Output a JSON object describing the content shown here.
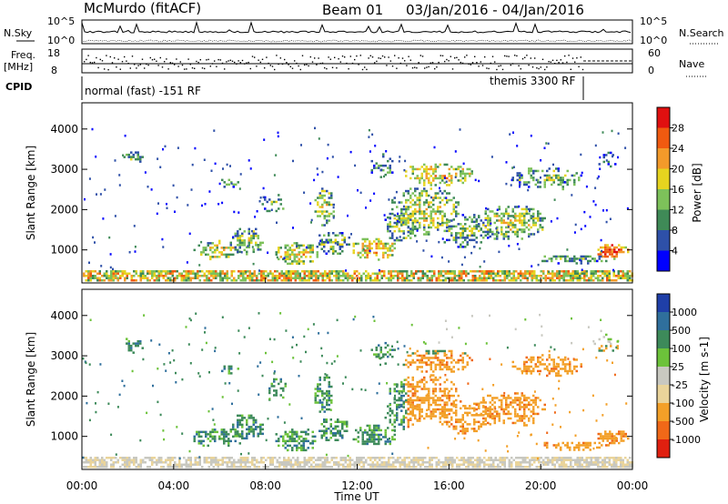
{
  "header": {
    "station": "McMurdo (fitACF)",
    "beam": "Beam 01",
    "date_range": "03/Jan/2016 - 04/Jan/2016"
  },
  "panels": {
    "nsky": {
      "left_label": "N.Sky",
      "right_label": "N.Search",
      "left_ticks": [
        "10^5",
        "10^0"
      ],
      "right_ticks": [
        "10^5",
        "10^0"
      ]
    },
    "freq": {
      "left_label": "Freq.",
      "left_unit": "[MHz]",
      "right_label": "Nave",
      "left_ticks": [
        "18",
        "8"
      ],
      "right_ticks": [
        "60",
        "0"
      ]
    },
    "cpid": {
      "label": "CPID",
      "modes": [
        "normal (fast) -151 RF",
        "themis 3300 RF"
      ]
    }
  },
  "chart_data": [
    {
      "type": "heatmap",
      "name": "Power",
      "ylabel": "Slant Range [km]",
      "y_ticks": [
        1000,
        2000,
        3000,
        4000
      ],
      "ylim": [
        180,
        4650
      ],
      "colorbar_label": "Power [dB]",
      "colorbar_ticks": [
        "4",
        "8",
        "12",
        "16",
        "20",
        "24",
        "28"
      ],
      "colors": [
        "#0000ff",
        "#2e50a8",
        "#3f8a57",
        "#7dc15a",
        "#e6d41f",
        "#f39a2a",
        "#f05a10",
        "#e01010"
      ]
    },
    {
      "type": "heatmap",
      "name": "Velocity",
      "ylabel": "Slant Range [km]",
      "y_ticks": [
        1000,
        2000,
        3000,
        4000
      ],
      "ylim": [
        180,
        4650
      ],
      "colorbar_label": "Velocity [m s-1]",
      "colorbar_ticks": [
        "1000",
        "500",
        "100",
        "25",
        "-25",
        "-100",
        "-500",
        "-1000"
      ],
      "colors": [
        "#1f3fa8",
        "#2f6f9c",
        "#3d8a5a",
        "#6cc23a",
        "#c8c8c0",
        "#ead49a",
        "#f3a028",
        "#f06818",
        "#e02010"
      ]
    }
  ],
  "x_axis": {
    "label": "Time UT",
    "ticks": [
      "00:00",
      "04:00",
      "08:00",
      "12:00",
      "16:00",
      "20:00",
      "00:00"
    ]
  }
}
